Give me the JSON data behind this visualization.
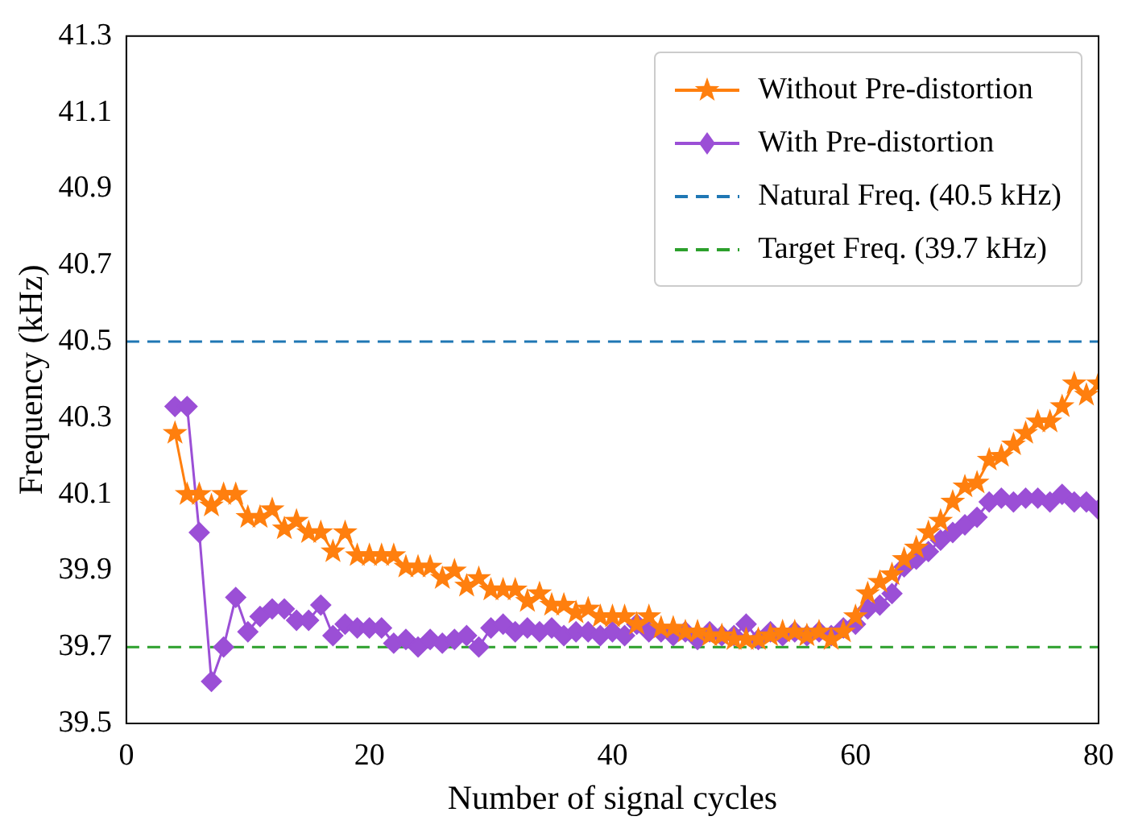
{
  "chart_data": {
    "type": "line",
    "xlabel": "Number of signal cycles",
    "ylabel": "Frequency (kHz)",
    "xlim": [
      0,
      80
    ],
    "ylim": [
      39.5,
      41.3
    ],
    "xticks": [
      0,
      20,
      40,
      60,
      80
    ],
    "yticks": [
      39.5,
      39.7,
      39.9,
      40.1,
      40.3,
      40.5,
      40.7,
      40.9,
      41.1,
      41.3
    ],
    "grid": false,
    "legend": "top right",
    "x": [
      4,
      5,
      6,
      7,
      8,
      9,
      10,
      11,
      12,
      13,
      14,
      15,
      16,
      17,
      18,
      19,
      20,
      21,
      22,
      23,
      24,
      25,
      26,
      27,
      28,
      29,
      30,
      31,
      32,
      33,
      34,
      35,
      36,
      37,
      38,
      39,
      40,
      41,
      42,
      43,
      44,
      45,
      46,
      47,
      48,
      49,
      50,
      51,
      52,
      53,
      54,
      55,
      56,
      57,
      58,
      59,
      60,
      61,
      62,
      63,
      64,
      65,
      66,
      67,
      68,
      69,
      70,
      71,
      72,
      73,
      74,
      75,
      76,
      77,
      78,
      79,
      80
    ],
    "series": [
      {
        "name": "Without Pre-distortion",
        "color": "#ff7f0e",
        "marker": "star",
        "values": [
          40.26,
          40.1,
          40.1,
          40.07,
          40.1,
          40.1,
          40.04,
          40.04,
          40.06,
          40.01,
          40.03,
          40.0,
          40.0,
          39.95,
          40.0,
          39.94,
          39.94,
          39.94,
          39.94,
          39.91,
          39.91,
          39.91,
          39.88,
          39.9,
          39.86,
          39.88,
          39.85,
          39.85,
          39.85,
          39.82,
          39.84,
          39.81,
          39.81,
          39.79,
          39.8,
          39.78,
          39.78,
          39.78,
          39.76,
          39.78,
          39.75,
          39.75,
          39.74,
          39.74,
          39.73,
          39.73,
          39.72,
          39.72,
          39.72,
          39.73,
          39.74,
          39.74,
          39.73,
          39.74,
          39.72,
          39.74,
          39.78,
          39.84,
          39.87,
          39.89,
          39.93,
          39.96,
          40.0,
          40.03,
          40.08,
          40.12,
          40.13,
          40.19,
          40.2,
          40.23,
          40.26,
          40.29,
          40.29,
          40.33,
          40.39,
          40.36,
          40.39
        ]
      },
      {
        "name": "With Pre-distortion",
        "color": "#9b4fd6",
        "marker": "diamond",
        "values": [
          40.33,
          40.33,
          40.0,
          39.61,
          39.7,
          39.83,
          39.74,
          39.78,
          39.8,
          39.8,
          39.77,
          39.77,
          39.81,
          39.73,
          39.76,
          39.75,
          39.75,
          39.75,
          39.71,
          39.72,
          39.7,
          39.72,
          39.71,
          39.72,
          39.73,
          39.7,
          39.75,
          39.76,
          39.74,
          39.75,
          39.74,
          39.75,
          39.73,
          39.74,
          39.74,
          39.73,
          39.74,
          39.73,
          39.76,
          39.74,
          39.74,
          39.73,
          39.74,
          39.72,
          39.74,
          39.73,
          39.73,
          39.76,
          39.72,
          39.74,
          39.73,
          39.74,
          39.73,
          39.74,
          39.73,
          39.75,
          39.76,
          39.8,
          39.81,
          39.84,
          39.91,
          39.93,
          39.95,
          39.98,
          40.0,
          40.02,
          40.04,
          40.08,
          40.09,
          40.08,
          40.09,
          40.09,
          40.08,
          40.1,
          40.08,
          40.08,
          40.06
        ]
      }
    ],
    "ref_lines": [
      {
        "axis": "y",
        "value": 40.5,
        "label": "Natural Freq. (40.5 kHz)",
        "color": "#1f77b4",
        "line_style": "dashed"
      },
      {
        "axis": "y",
        "value": 39.7,
        "label": "Target Freq. (39.7 kHz)",
        "color": "#2ca02c",
        "line_style": "dashed"
      }
    ]
  }
}
